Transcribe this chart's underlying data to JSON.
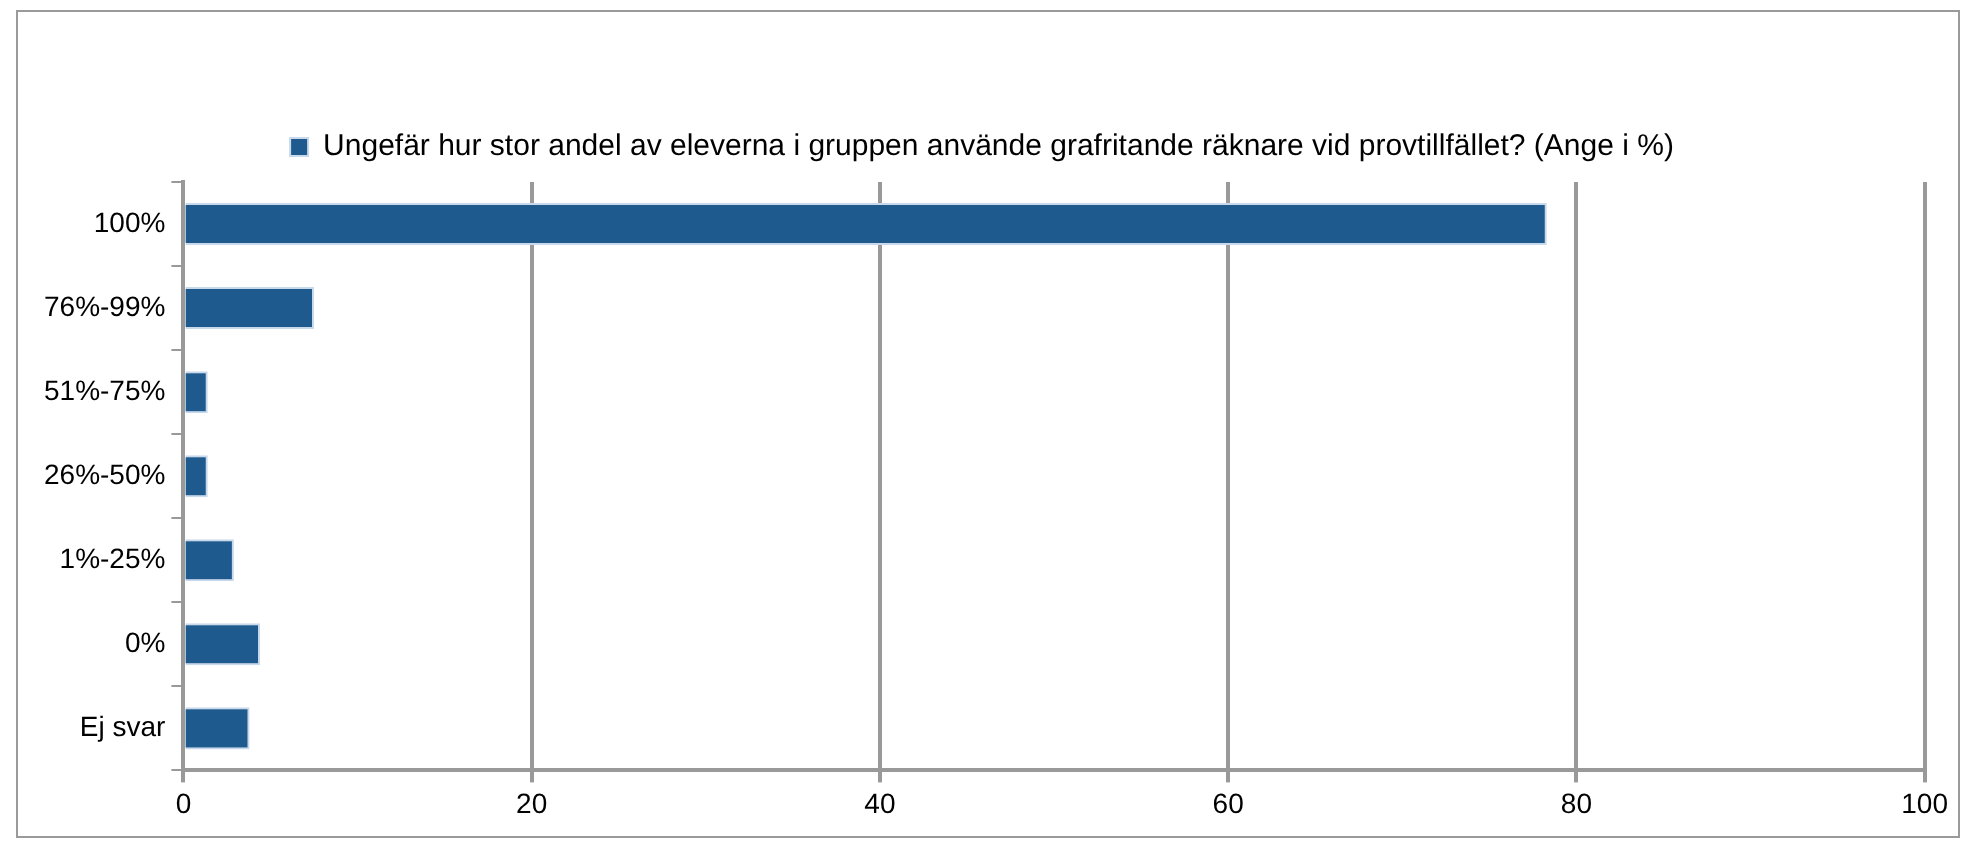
{
  "chart_data": {
    "type": "bar",
    "orientation": "horizontal",
    "categories": [
      "100%",
      "76%-99%",
      "51%-75%",
      "26%-50%",
      "1%-25%",
      "0%",
      "Ej svar"
    ],
    "series": [
      {
        "name": "Ungefär hur stor andel av eleverna i gruppen använde grafritande räknare vid provtillfället? (Ange i %)",
        "color": "#1f5a8f",
        "values": [
          78.3,
          7.5,
          1.4,
          1.4,
          2.9,
          4.4,
          3.8
        ]
      }
    ],
    "xlim": [
      0,
      100
    ],
    "xticks": [
      0,
      20,
      40,
      60,
      80,
      100
    ],
    "grid": "x",
    "legend": "top"
  }
}
